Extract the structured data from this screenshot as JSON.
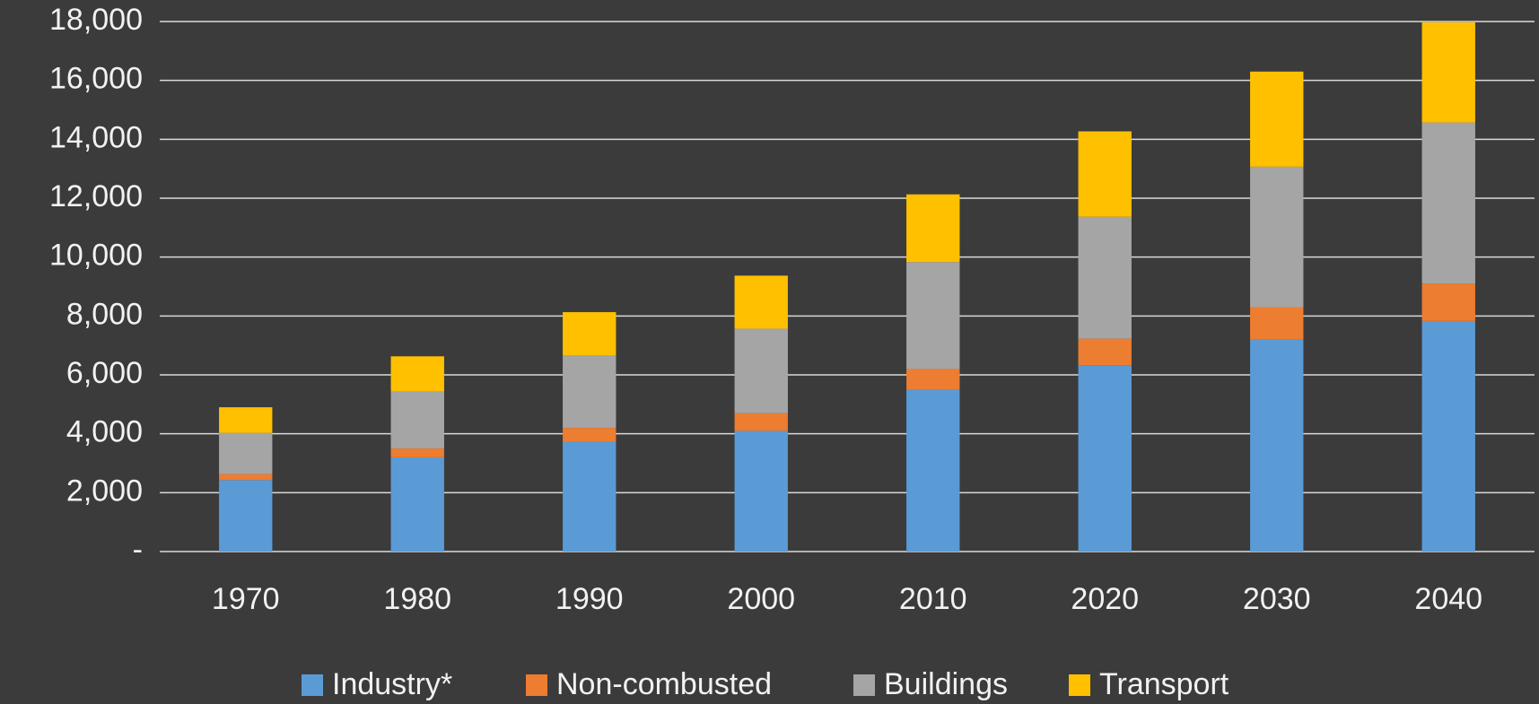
{
  "chart_data": {
    "type": "stacked_bar",
    "categories": [
      "1970",
      "1980",
      "1990",
      "2000",
      "2010",
      "2020",
      "2030",
      "2040"
    ],
    "series": [
      {
        "name": "Industry*",
        "color": "#5b9bd5",
        "values": [
          2430,
          3200,
          3730,
          4100,
          5500,
          6330,
          7200,
          7830
        ]
      },
      {
        "name": "Non-combusted",
        "color": "#ed7d31",
        "values": [
          200,
          300,
          470,
          600,
          700,
          900,
          1100,
          1270
        ]
      },
      {
        "name": "Buildings",
        "color": "#a5a5a5",
        "values": [
          1400,
          1930,
          2470,
          2870,
          3630,
          4140,
          4770,
          5470
        ]
      },
      {
        "name": "Transport",
        "color": "#ffc000",
        "values": [
          870,
          1200,
          1460,
          1800,
          2300,
          2900,
          3230,
          3400
        ]
      }
    ],
    "ylim": [
      0,
      18000
    ],
    "yticks": [
      {
        "value": 0,
        "label": "-"
      },
      {
        "value": 2000,
        "label": "2,000"
      },
      {
        "value": 4000,
        "label": "4,000"
      },
      {
        "value": 6000,
        "label": "6,000"
      },
      {
        "value": 8000,
        "label": "8,000"
      },
      {
        "value": 10000,
        "label": "10,000"
      },
      {
        "value": 12000,
        "label": "12,000"
      },
      {
        "value": 14000,
        "label": "14,000"
      },
      {
        "value": 16000,
        "label": "16,000"
      },
      {
        "value": 18000,
        "label": "18,000"
      }
    ],
    "grid": true,
    "legend": "bottom"
  }
}
